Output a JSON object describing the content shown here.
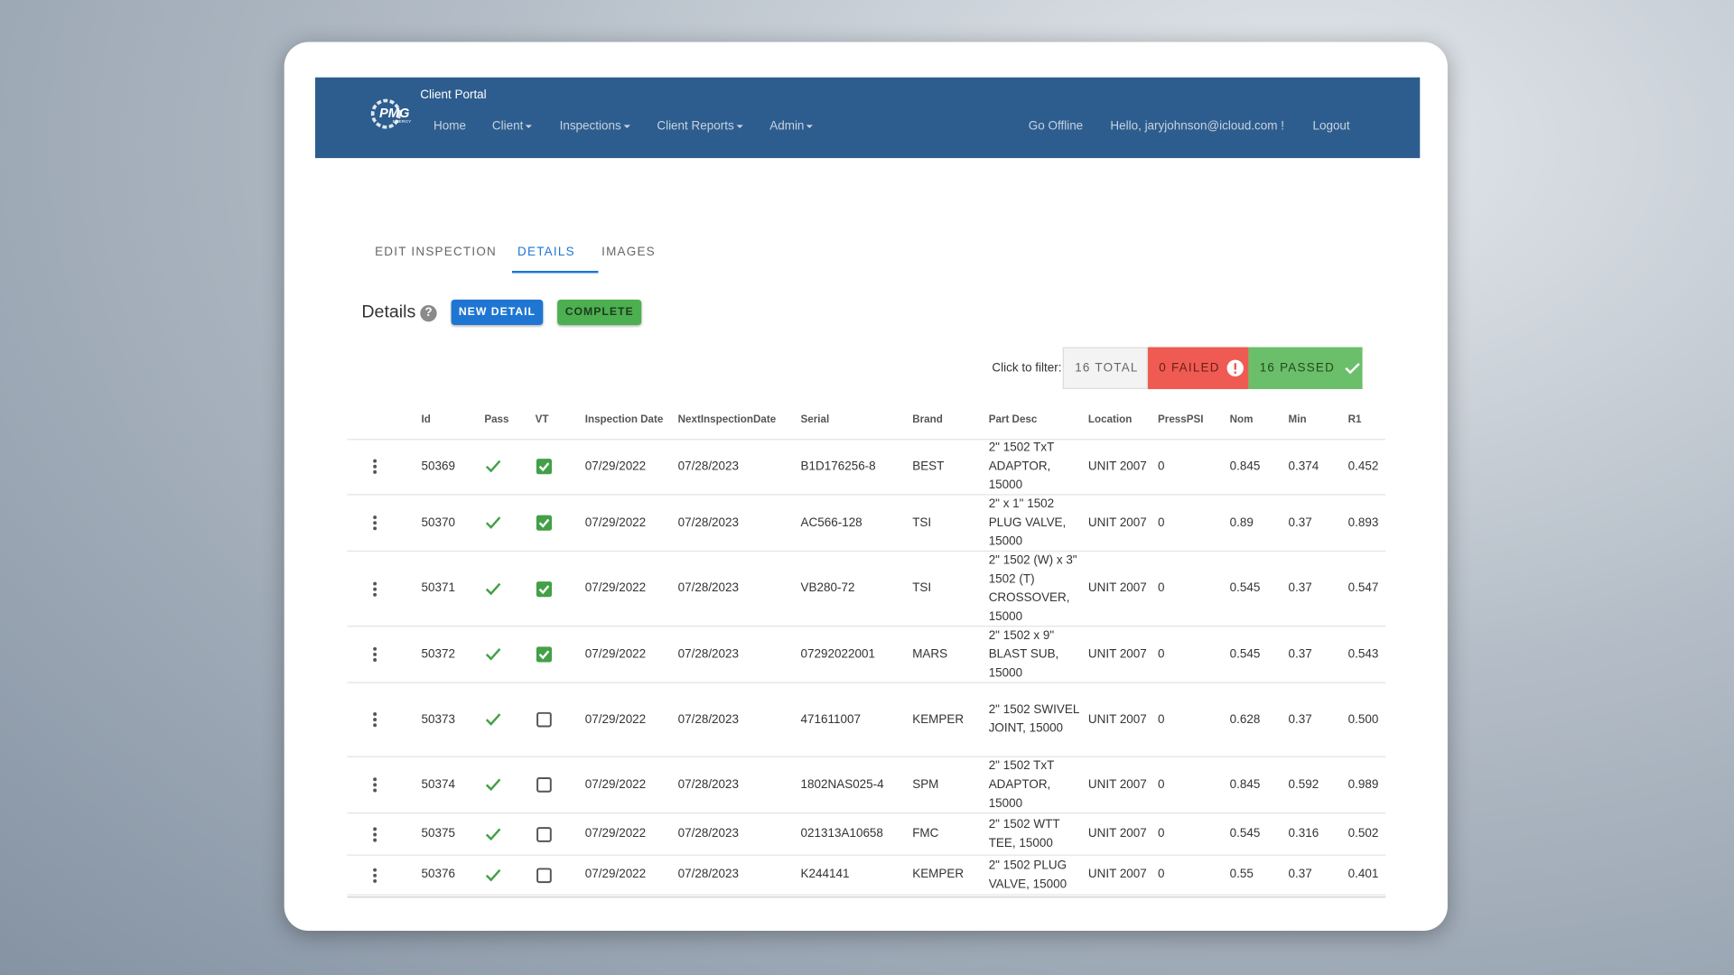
{
  "nav": {
    "brand": "PMG",
    "brand_sub": "ENERGY",
    "title": "Client Portal",
    "items": [
      "Home",
      "Client",
      "Inspections",
      "Client Reports",
      "Admin"
    ],
    "dropdown": [
      false,
      true,
      true,
      true,
      true
    ],
    "right": [
      "Go Offline",
      "Hello, jaryjohnson@icloud.com !",
      "Logout"
    ]
  },
  "tabs": [
    "EDIT INSPECTION",
    "DETAILS",
    "IMAGES"
  ],
  "active_tab": 1,
  "section": {
    "title": "Details",
    "help": "?",
    "buttons": [
      "NEW DETAIL",
      "COMPLETE"
    ]
  },
  "filter": {
    "label": "Click to filter:",
    "total": "16 TOTAL",
    "failed": "0 FAILED",
    "passed": "16 PASSED"
  },
  "table": {
    "columns": [
      "Id",
      "Pass",
      "VT",
      "Inspection Date",
      "NextInspectionDate",
      "Serial",
      "Brand",
      "Part Desc",
      "Location",
      "PressPSI",
      "Nom",
      "Min",
      "R1"
    ],
    "rows": [
      [
        "50369",
        true,
        true,
        "07/29/2022",
        "07/28/2023",
        "B1D176256-8",
        "BEST",
        "2\" 1502 TxT ADAPTOR, 15000",
        "UNIT 2007",
        "0",
        "0.845",
        "0.374",
        "0.452"
      ],
      [
        "50370",
        true,
        true,
        "07/29/2022",
        "07/28/2023",
        "AC566-128",
        "TSI",
        "2\" x 1\" 1502 PLUG VALVE, 15000",
        "UNIT 2007",
        "0",
        "0.89",
        "0.37",
        "0.893"
      ],
      [
        "50371",
        true,
        true,
        "07/29/2022",
        "07/28/2023",
        "VB280-72",
        "TSI",
        "2\" 1502 (W) x 3\" 1502 (T) CROSSOVER, 15000",
        "UNIT 2007",
        "0",
        "0.545",
        "0.37",
        "0.547"
      ],
      [
        "50372",
        true,
        true,
        "07/29/2022",
        "07/28/2023",
        "07292022001",
        "MARS",
        "2\" 1502 x 9\" BLAST SUB, 15000",
        "UNIT 2007",
        "0",
        "0.545",
        "0.37",
        "0.543"
      ],
      [
        "50373",
        true,
        false,
        "07/29/2022",
        "07/28/2023",
        "471611007",
        "KEMPER",
        "2\" 1502 SWIVEL JOINT, 15000",
        "UNIT 2007",
        "0",
        "0.628",
        "0.37",
        "0.500"
      ],
      [
        "50374",
        true,
        false,
        "07/29/2022",
        "07/28/2023",
        "1802NAS025-4",
        "SPM",
        "2\" 1502 TxT ADAPTOR, 15000",
        "UNIT 2007",
        "0",
        "0.845",
        "0.592",
        "0.989"
      ],
      [
        "50375",
        true,
        false,
        "07/29/2022",
        "07/28/2023",
        "021313A10658",
        "FMC",
        "2\" 1502 WTT TEE, 15000",
        "UNIT 2007",
        "0",
        "0.545",
        "0.316",
        "0.502"
      ],
      [
        "50376",
        true,
        false,
        "07/29/2022",
        "07/28/2023",
        "K244141",
        "KEMPER",
        "2\" 1502 PLUG VALVE, 15000",
        "UNIT 2007",
        "0",
        "0.55",
        "0.37",
        "0.401"
      ]
    ]
  }
}
